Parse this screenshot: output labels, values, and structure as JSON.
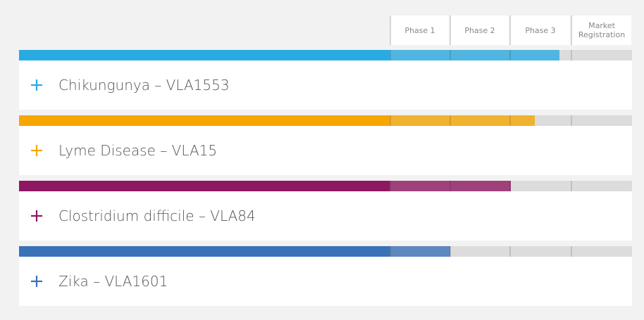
{
  "phases": [
    "Phase 1",
    "Phase 2",
    "Phase 3",
    "Market Registration"
  ],
  "programs": [
    {
      "name": "Chikungunya – VLA1553",
      "color": "#29abe2",
      "progress": 2.8
    },
    {
      "name": "Lyme Disease – VLA15",
      "color": "#f7a600",
      "progress": 2.4
    },
    {
      "name": "Clostridium difficile – VLA84",
      "color": "#8e1761",
      "progress": 2.0
    },
    {
      "name": "Zika – VLA1601",
      "color": "#3a72b8",
      "progress": 1.0
    }
  ]
}
